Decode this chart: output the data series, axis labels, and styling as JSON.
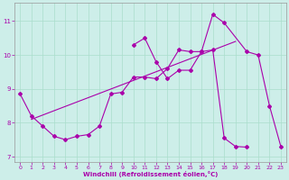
{
  "background_color": "#cdeee9",
  "grid_color": "#aaddcc",
  "line_color": "#aa00aa",
  "xlim": [
    -0.5,
    23.5
  ],
  "ylim": [
    6.85,
    11.55
  ],
  "yticks": [
    7,
    8,
    9,
    10,
    11
  ],
  "xticks": [
    0,
    1,
    2,
    3,
    4,
    5,
    6,
    7,
    8,
    9,
    10,
    11,
    12,
    13,
    14,
    15,
    16,
    17,
    18,
    19,
    20,
    21,
    22,
    23
  ],
  "xlabel": "Windchill (Refroidissement éolien,°C)",
  "line1_x": [
    0,
    1,
    2,
    3,
    4,
    5,
    6,
    7,
    8,
    9,
    10,
    11,
    12,
    13,
    14,
    15,
    16,
    17,
    18,
    19,
    20,
    21,
    22,
    23
  ],
  "line1_y": [
    8.85,
    8.2,
    7.9,
    7.6,
    7.5,
    7.6,
    7.65,
    7.9,
    8.85,
    8.9,
    9.35,
    9.35,
    9.3,
    9.6,
    10.15,
    10.1,
    10.1,
    10.15,
    7.55,
    7.3,
    7.28,
    null,
    null,
    null
  ],
  "line2_x": [
    10,
    11,
    12,
    13,
    14,
    15,
    16,
    17,
    18,
    20,
    21,
    22,
    23
  ],
  "line2_y": [
    10.3,
    10.5,
    9.8,
    9.3,
    9.55,
    9.55,
    10.1,
    11.2,
    10.95,
    10.1,
    10.0,
    8.5,
    7.3
  ],
  "trend_x": [
    1,
    19
  ],
  "trend_y": [
    8.1,
    10.4
  ]
}
